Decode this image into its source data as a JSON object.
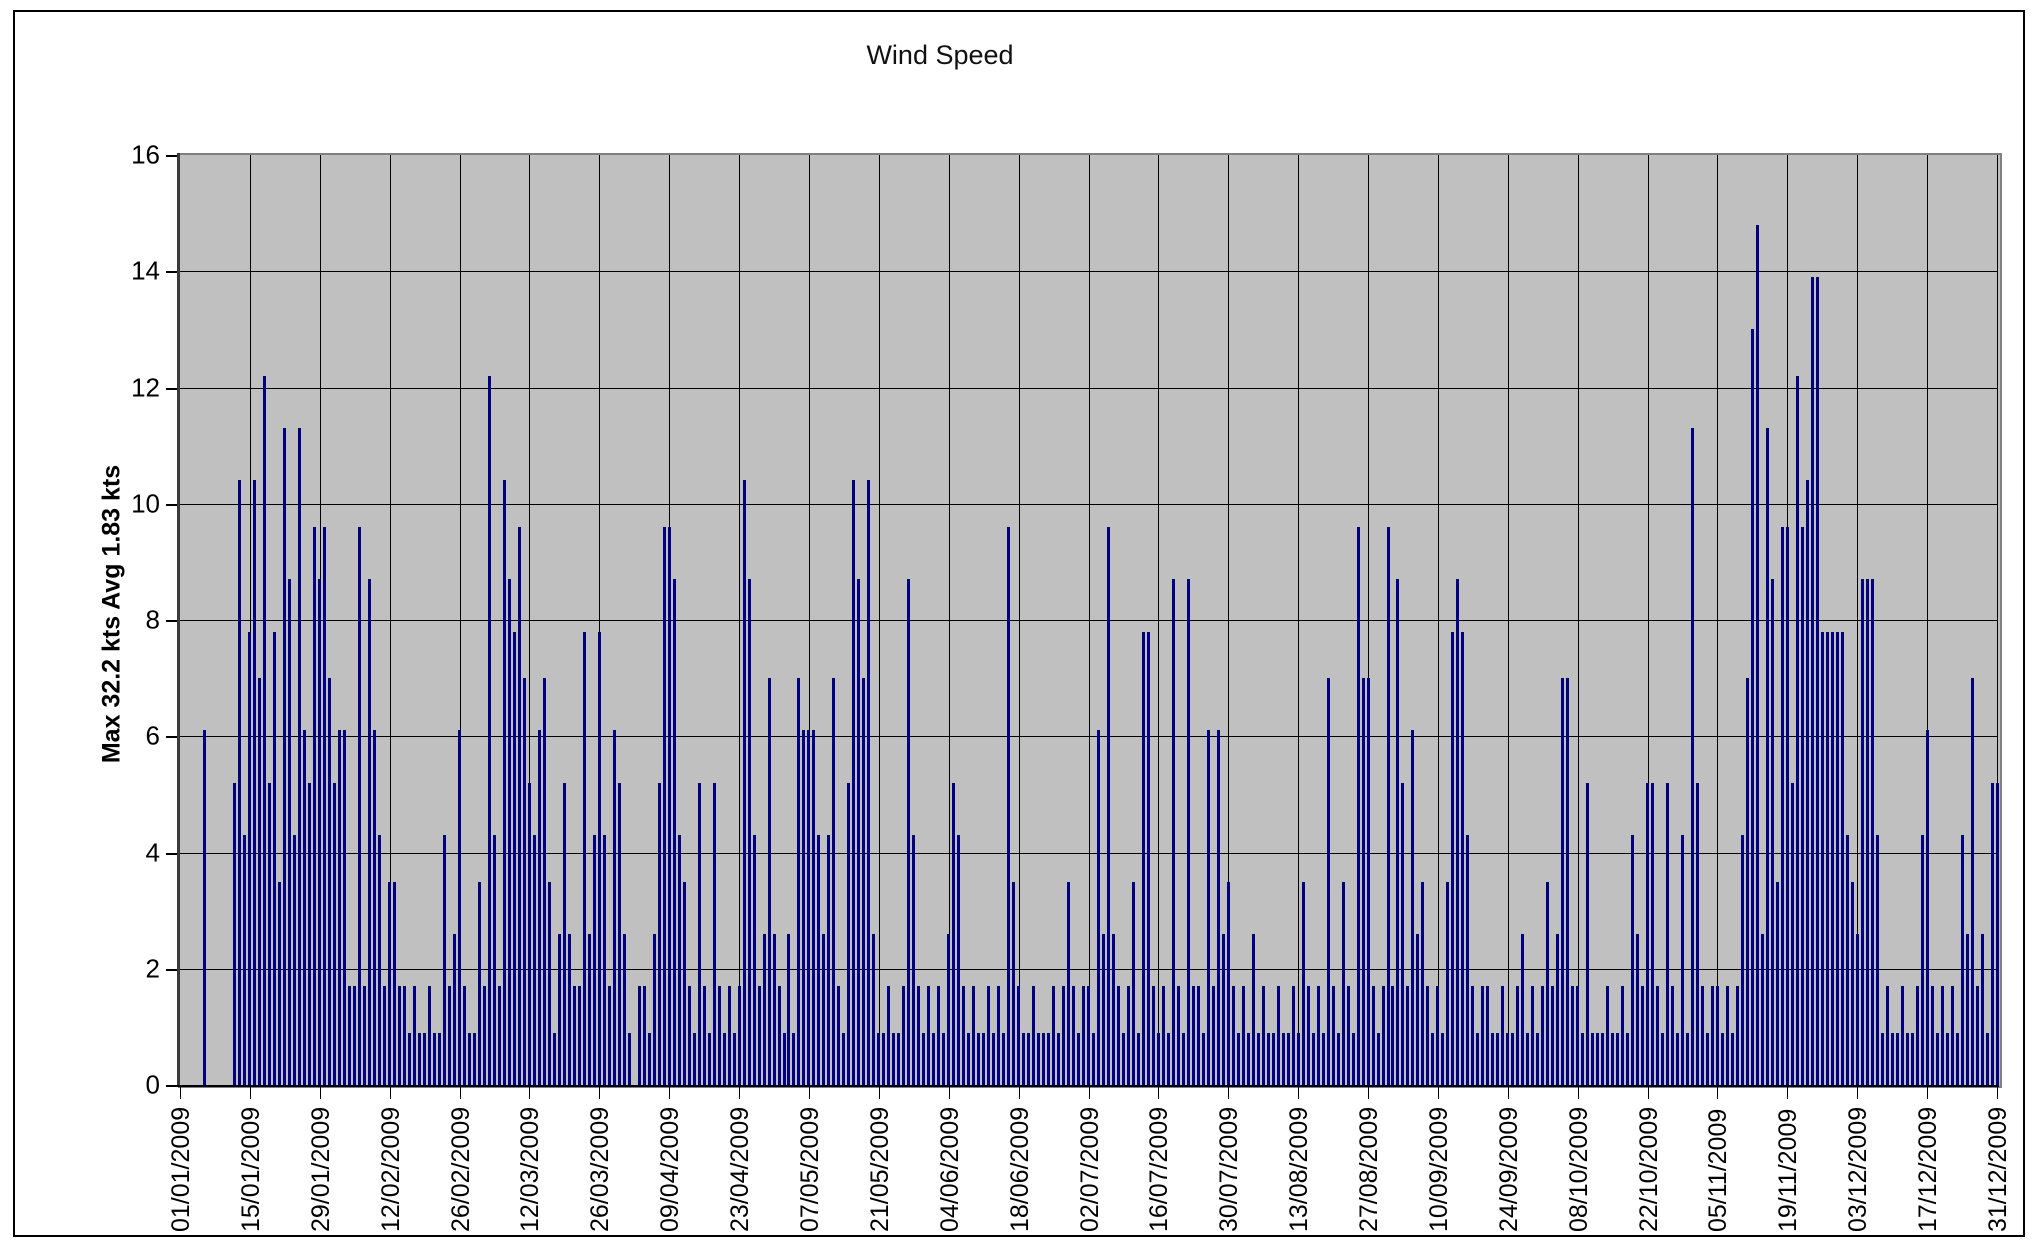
{
  "chart_title": "Wind Speed",
  "y_axis": {
    "title": "Max 32.2 kts Avg 1.83 kts",
    "ticks": [
      0,
      2,
      4,
      6,
      8,
      10,
      12,
      14,
      16
    ],
    "min": 0,
    "max": 16
  },
  "x_axis": {
    "tick_labels": [
      "01/01/2009",
      "15/01/2009",
      "29/01/2009",
      "12/02/2009",
      "26/02/2009",
      "12/03/2009",
      "26/03/2009",
      "09/04/2009",
      "23/04/2009",
      "07/05/2009",
      "21/05/2009",
      "04/06/2009",
      "18/06/2009",
      "02/07/2009",
      "16/07/2009",
      "30/07/2009",
      "13/08/2009",
      "27/08/2009",
      "10/09/2009",
      "24/09/2009",
      "08/10/2009",
      "22/10/2009",
      "05/11/2009",
      "19/11/2009",
      "03/12/2009",
      "17/12/2009",
      "31/12/2009"
    ],
    "tick_interval_days": 14
  },
  "stats": {
    "max_kts": 32.2,
    "avg_kts": 1.83,
    "unit": "kts"
  },
  "colors": {
    "bar": "#000080",
    "plot_background": "#C0C0C0",
    "gridline": "#000000",
    "plot_border": "#808080",
    "frame_border": "#000000",
    "page_background": "#FFFFFF"
  },
  "chart_data": {
    "type": "bar",
    "title": "Wind Speed",
    "xlabel": "",
    "ylabel": "Max 32.2 kts Avg 1.83 kts",
    "ylim": [
      0,
      16
    ],
    "grid": true,
    "x_start_date": "01/01/2009",
    "x_end_date": "31/12/2009",
    "x_is_daily": true,
    "values": [
      0,
      0,
      0,
      0,
      0,
      6.1,
      0,
      0,
      0,
      0,
      0,
      5.2,
      10.4,
      4.3,
      7.8,
      10.4,
      7.0,
      12.2,
      5.2,
      7.8,
      3.5,
      11.3,
      8.7,
      4.3,
      11.3,
      6.1,
      5.2,
      9.6,
      8.7,
      9.6,
      7.0,
      5.2,
      6.1,
      6.1,
      1.7,
      1.7,
      9.6,
      1.7,
      8.7,
      6.1,
      4.3,
      1.7,
      3.5,
      3.5,
      1.7,
      1.7,
      0.9,
      1.7,
      0.9,
      0.9,
      1.7,
      0.9,
      0.9,
      4.3,
      1.7,
      2.6,
      6.1,
      1.7,
      0.9,
      0.9,
      3.5,
      1.7,
      12.2,
      4.3,
      1.7,
      10.4,
      8.7,
      7.8,
      9.6,
      7.0,
      5.2,
      4.3,
      6.1,
      7.0,
      3.5,
      0.9,
      2.6,
      5.2,
      2.6,
      1.7,
      1.7,
      7.8,
      2.6,
      4.3,
      7.8,
      4.3,
      1.7,
      6.1,
      5.2,
      2.6,
      0.9,
      0,
      1.7,
      1.7,
      0.9,
      2.6,
      5.2,
      9.6,
      9.6,
      8.7,
      4.3,
      3.5,
      1.7,
      0.9,
      5.2,
      1.7,
      0.9,
      5.2,
      1.7,
      0.9,
      1.7,
      0.9,
      1.7,
      10.4,
      8.7,
      4.3,
      1.7,
      2.6,
      7.0,
      2.6,
      1.7,
      0.9,
      2.6,
      0.9,
      7.0,
      6.1,
      6.1,
      6.1,
      4.3,
      2.6,
      4.3,
      7.0,
      1.7,
      0.9,
      5.2,
      10.4,
      8.7,
      7.0,
      10.4,
      2.6,
      0.9,
      0.9,
      1.7,
      0.9,
      0.9,
      1.7,
      8.7,
      4.3,
      1.7,
      0.9,
      1.7,
      0.9,
      1.7,
      0.9,
      2.6,
      5.2,
      4.3,
      1.7,
      0.9,
      1.7,
      0.9,
      0.9,
      1.7,
      0.9,
      1.7,
      0.9,
      9.6,
      3.5,
      1.7,
      0.9,
      0.9,
      1.7,
      0.9,
      0.9,
      0.9,
      1.7,
      0.9,
      1.7,
      3.5,
      1.7,
      0.9,
      1.7,
      1.7,
      0.9,
      6.1,
      2.6,
      9.6,
      2.6,
      1.7,
      0.9,
      1.7,
      3.5,
      0.9,
      7.8,
      7.8,
      1.7,
      0.9,
      1.7,
      0.9,
      8.7,
      1.7,
      0.9,
      8.7,
      1.7,
      1.7,
      0.9,
      6.1,
      1.7,
      6.1,
      2.6,
      3.5,
      1.7,
      0.9,
      1.7,
      0.9,
      2.6,
      0.9,
      1.7,
      0.9,
      0.9,
      1.7,
      0.9,
      0.9,
      1.7,
      0.9,
      3.5,
      1.7,
      0.9,
      1.7,
      0.9,
      7.0,
      1.7,
      0.9,
      3.5,
      1.7,
      0.9,
      9.6,
      7.0,
      7.0,
      1.7,
      0.9,
      1.7,
      9.6,
      1.7,
      8.7,
      5.2,
      1.7,
      6.1,
      2.6,
      3.5,
      1.7,
      0.9,
      1.7,
      0.9,
      3.5,
      7.8,
      8.7,
      7.8,
      4.3,
      1.7,
      0.9,
      1.7,
      1.7,
      0.9,
      0.9,
      1.7,
      0.9,
      0.9,
      1.7,
      2.6,
      0.9,
      1.7,
      0.9,
      1.7,
      3.5,
      1.7,
      2.6,
      7.0,
      7.0,
      1.7,
      1.7,
      0.9,
      5.2,
      0.9,
      0.9,
      0.9,
      1.7,
      0.9,
      0.9,
      1.7,
      0.9,
      4.3,
      2.6,
      1.7,
      5.2,
      5.2,
      1.7,
      0.9,
      5.2,
      1.7,
      0.9,
      4.3,
      0.9,
      11.3,
      5.2,
      1.7,
      0.9,
      1.7,
      1.7,
      0.9,
      1.7,
      0.9,
      1.7,
      4.3,
      7.0,
      13.0,
      14.8,
      2.6,
      11.3,
      8.7,
      3.5,
      9.6,
      9.6,
      5.2,
      12.2,
      9.6,
      10.4,
      13.9,
      13.9,
      7.8,
      7.8,
      7.8,
      7.8,
      7.8,
      4.3,
      3.5,
      2.6,
      8.7,
      8.7,
      8.7,
      4.3,
      0.9,
      1.7,
      0.9,
      0.9,
      1.7,
      0.9,
      0.9,
      1.7,
      4.3,
      6.1,
      1.7,
      0.9,
      1.7,
      0.9,
      1.7,
      0.9,
      4.3,
      2.6,
      7.0,
      1.7,
      2.6,
      0.9,
      5.2,
      5.2
    ]
  }
}
